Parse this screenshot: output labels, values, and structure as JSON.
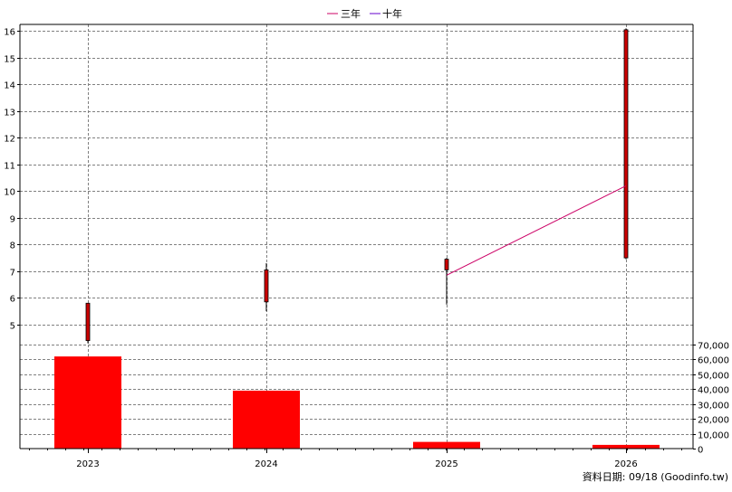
{
  "legend": [
    {
      "label": "三年",
      "color": "#cc0066"
    },
    {
      "label": "十年",
      "color": "#6600cc"
    }
  ],
  "footer": "資料日期: 09/18  (Goodinfo.tw)",
  "chart_data": [
    {
      "type": "candlestick",
      "categories": [
        "2023",
        "2024",
        "2025",
        "2026"
      ],
      "y_ticks": [
        5,
        6,
        7,
        8,
        9,
        10,
        11,
        12,
        13,
        14,
        15,
        16
      ],
      "ylim": [
        4.25,
        16.25
      ],
      "grid": true,
      "candles": [
        {
          "x": "2023",
          "open": 4.4,
          "close": 5.8,
          "high": 5.8,
          "low": 4.3
        },
        {
          "x": "2024",
          "open": 5.85,
          "close": 7.05,
          "high": 7.3,
          "low": 5.5
        },
        {
          "x": "2025",
          "open": 7.45,
          "close": 7.05,
          "high": 7.5,
          "low": 5.75
        },
        {
          "x": "2026",
          "open": 7.5,
          "close": 16.05,
          "high": 16.1,
          "low": 7.45
        }
      ],
      "candle_color": "#cc0000",
      "series": [
        {
          "name": "三年",
          "color": "#cc0066",
          "points": [
            {
              "x": "2025",
              "y": 6.85
            },
            {
              "x": "2026",
              "y": 10.2
            }
          ]
        },
        {
          "name": "十年",
          "color": "#6600cc",
          "points": []
        }
      ]
    },
    {
      "type": "bar",
      "categories": [
        "2023",
        "2024",
        "2025",
        "2026"
      ],
      "values": [
        62000,
        39000,
        4500,
        2500
      ],
      "y_ticks": [
        0,
        10000,
        20000,
        30000,
        40000,
        50000,
        60000,
        70000
      ],
      "y_tick_labels": [
        "0",
        "10,000",
        "20,000",
        "30,000",
        "40,000",
        "50,000",
        "60,000",
        "70,000"
      ],
      "ylim": [
        0,
        70000
      ],
      "grid": true,
      "bar_color": "#ff0000"
    }
  ]
}
